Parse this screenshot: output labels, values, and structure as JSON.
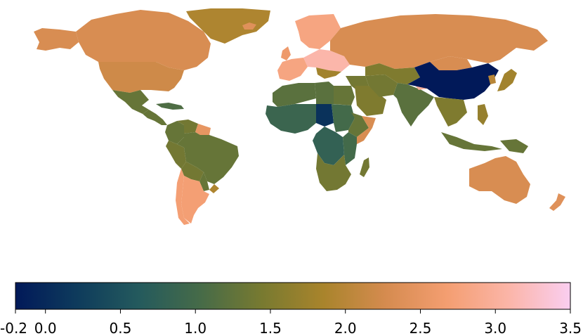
{
  "map": {
    "type": "choropleth world map",
    "title": "",
    "regions": [
      {
        "name": "Canada",
        "value": 2.3
      },
      {
        "name": "United States",
        "value": 2.2
      },
      {
        "name": "Alaska",
        "value": 2.3
      },
      {
        "name": "Greenland",
        "value": 1.9
      },
      {
        "name": "Mexico",
        "value": 1.3
      },
      {
        "name": "Central America",
        "value": 1.3
      },
      {
        "name": "Caribbean",
        "value": 1.1
      },
      {
        "name": "Colombia",
        "value": 1.3
      },
      {
        "name": "Venezuela",
        "value": 1.4
      },
      {
        "name": "Guianas",
        "value": 2.5
      },
      {
        "name": "Brazil",
        "value": 1.3
      },
      {
        "name": "Peru",
        "value": 1.4
      },
      {
        "name": "Bolivia",
        "value": 1.4
      },
      {
        "name": "Paraguay",
        "value": 1.3
      },
      {
        "name": "Chile",
        "value": 2.7
      },
      {
        "name": "Argentina",
        "value": 2.7
      },
      {
        "name": "Uruguay",
        "value": 1.9
      },
      {
        "name": "Iceland",
        "value": 2.4
      },
      {
        "name": "Western Europe",
        "value": 2.8
      },
      {
        "name": "Scandinavia",
        "value": 2.8
      },
      {
        "name": "United Kingdom",
        "value": 2.6
      },
      {
        "name": "Eastern Europe",
        "value": 3.1
      },
      {
        "name": "Balkans",
        "value": 1.8
      },
      {
        "name": "Russia",
        "value": 2.3
      },
      {
        "name": "North Africa",
        "value": 1.2
      },
      {
        "name": "Egypt",
        "value": 1.3
      },
      {
        "name": "Libya",
        "value": 1.2
      },
      {
        "name": "West Africa",
        "value": 0.9
      },
      {
        "name": "Chad",
        "value": 0.1
      },
      {
        "name": "Sudan",
        "value": 1.0
      },
      {
        "name": "Ethiopia",
        "value": 1.3
      },
      {
        "name": "Somalia",
        "value": 2.3
      },
      {
        "name": "DR Congo",
        "value": 0.8
      },
      {
        "name": "East Africa",
        "value": 1.0
      },
      {
        "name": "Southern Africa",
        "value": 1.4
      },
      {
        "name": "Madagascar",
        "value": 1.4
      },
      {
        "name": "Middle East",
        "value": 1.4
      },
      {
        "name": "Saudi Arabia",
        "value": 1.5
      },
      {
        "name": "Iran",
        "value": 1.4
      },
      {
        "name": "Central Asia",
        "value": 1.5
      },
      {
        "name": "India",
        "value": 1.2
      },
      {
        "name": "Nepal",
        "value": 3.0
      },
      {
        "name": "Mongolia",
        "value": 2.3
      },
      {
        "name": "China",
        "value": -0.2
      },
      {
        "name": "Japan",
        "value": 1.8
      },
      {
        "name": "Korea",
        "value": 2.0
      },
      {
        "name": "Southeast Asia",
        "value": 1.5
      },
      {
        "name": "Philippines",
        "value": 1.7
      },
      {
        "name": "Indonesia",
        "value": 1.3
      },
      {
        "name": "New Guinea",
        "value": 1.3
      },
      {
        "name": "Australia",
        "value": 2.3
      },
      {
        "name": "New Zealand",
        "value": 2.4
      }
    ]
  },
  "colorbar": {
    "min": -0.2,
    "max": 3.5,
    "colormap": "batlow",
    "stops": [
      "#011959",
      "#0e3b5c",
      "#245a5d",
      "#466b48",
      "#787a30",
      "#a9842c",
      "#d58b4f",
      "#f49e71",
      "#fbb5a8",
      "#facef0"
    ],
    "tick_values": [
      -0.2,
      0.0,
      0.5,
      1.0,
      1.5,
      2.0,
      2.5,
      3.0,
      3.5
    ],
    "tick_labels": [
      "-0.2",
      "0.0",
      "0.5",
      "1.0",
      "1.5",
      "2.0",
      "2.5",
      "3.0",
      "3.5"
    ]
  }
}
